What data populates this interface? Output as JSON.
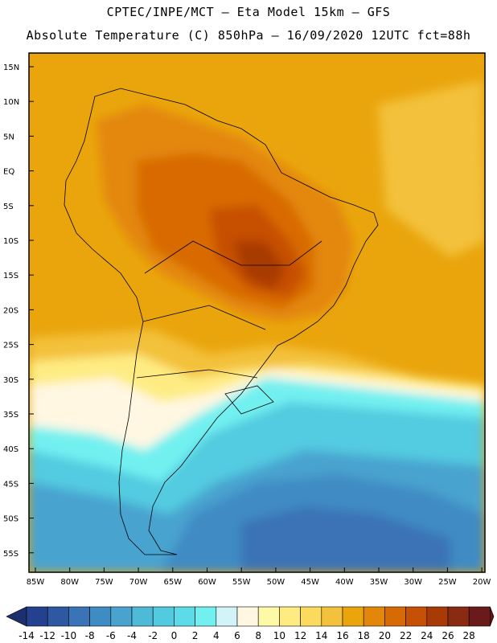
{
  "header": {
    "line1": "CPTEC/INPE/MCT –  Eta Model 15km – GFS",
    "line2": "Absolute Temperature (C) 850hPa – 16/09/2020 12UTC fct=88h"
  },
  "map": {
    "region": "South America",
    "lat_labels": [
      "15N",
      "10N",
      "5N",
      "EQ",
      "5S",
      "10S",
      "15S",
      "20S",
      "25S",
      "30S",
      "35S",
      "40S",
      "45S",
      "50S",
      "55S"
    ],
    "lon_labels": [
      "85W",
      "80W",
      "75W",
      "70W",
      "65W",
      "60W",
      "55W",
      "50W",
      "45W",
      "40W",
      "35W",
      "30W",
      "25W",
      "20W"
    ]
  },
  "colorbar": {
    "labels": [
      "-14",
      "-12",
      "-10",
      "-8",
      "-6",
      "-4",
      "-2",
      "0",
      "2",
      "4",
      "6",
      "8",
      "10",
      "12",
      "14",
      "16",
      "18",
      "20",
      "22",
      "24",
      "26",
      "28"
    ],
    "colors": [
      "#23418f",
      "#2f58a2",
      "#3a73b6",
      "#3f8bc4",
      "#4aa3cf",
      "#4fbad8",
      "#52cbe0",
      "#5ddbe9",
      "#72f0f0",
      "#d2f4f8",
      "#fff7e2",
      "#fef9a7",
      "#feec83",
      "#fbdb5e",
      "#f3c13b",
      "#eaa50d",
      "#e3870b",
      "#d86a06",
      "#c65005",
      "#a83a06",
      "#8a2a10",
      "#6a1a1a"
    ],
    "low_arrow_color": "#1e2f6e",
    "high_arrow_color": "#6a0f1a"
  }
}
